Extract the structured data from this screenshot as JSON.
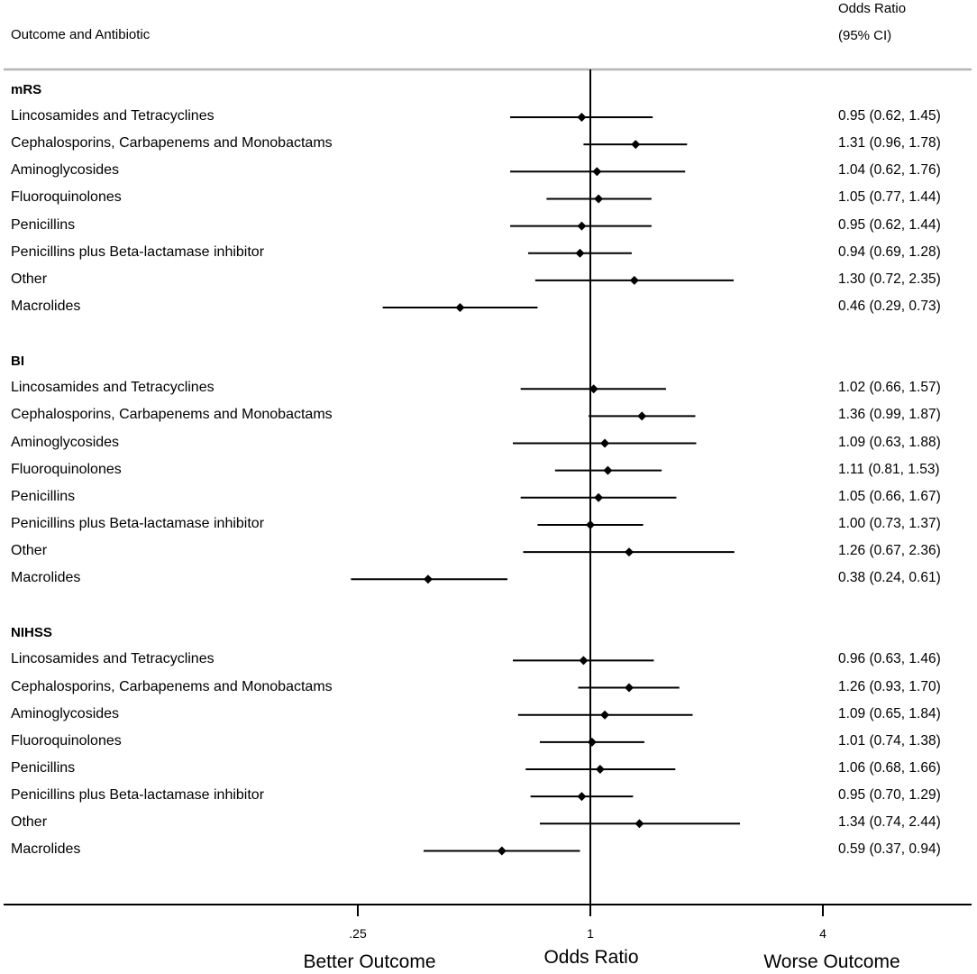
{
  "chart_data": {
    "type": "forest",
    "header": {
      "left": "Outcome and Antibiotic",
      "right_line1": "Odds Ratio",
      "right_line2": "(95% CI)"
    },
    "x_scale": "log2",
    "x_ticks": [
      {
        "value": 0.25,
        "label": ".25"
      },
      {
        "value": 1,
        "label": "1"
      },
      {
        "value": 4,
        "label": "4"
      }
    ],
    "xlabel": "Odds Ratio",
    "left_annotation": "Better Outcome",
    "right_annotation": "Worse Outcome",
    "reference_value": 1,
    "groups": [
      {
        "name": "mRS",
        "rows": [
          {
            "label": "Lincosamides and Tetracyclines",
            "or": 0.95,
            "lo": 0.62,
            "hi": 1.45,
            "text": "0.95 (0.62, 1.45)"
          },
          {
            "label": "Cephalosporins, Carbapenems and Monobactams",
            "or": 1.31,
            "lo": 0.96,
            "hi": 1.78,
            "text": "1.31 (0.96, 1.78)"
          },
          {
            "label": "Aminoglycosides",
            "or": 1.04,
            "lo": 0.62,
            "hi": 1.76,
            "text": "1.04 (0.62, 1.76)"
          },
          {
            "label": "Fluoroquinolones",
            "or": 1.05,
            "lo": 0.77,
            "hi": 1.44,
            "text": "1.05 (0.77, 1.44)"
          },
          {
            "label": "Penicillins",
            "or": 0.95,
            "lo": 0.62,
            "hi": 1.44,
            "text": "0.95 (0.62, 1.44)"
          },
          {
            "label": "Penicillins plus Beta-lactamase inhibitor",
            "or": 0.94,
            "lo": 0.69,
            "hi": 1.28,
            "text": "0.94 (0.69, 1.28)"
          },
          {
            "label": "Other",
            "or": 1.3,
            "lo": 0.72,
            "hi": 2.35,
            "text": "1.30 (0.72, 2.35)"
          },
          {
            "label": "Macrolides",
            "or": 0.46,
            "lo": 0.29,
            "hi": 0.73,
            "text": "0.46 (0.29, 0.73)"
          }
        ]
      },
      {
        "name": "BI",
        "rows": [
          {
            "label": "Lincosamides and Tetracyclines",
            "or": 1.02,
            "lo": 0.66,
            "hi": 1.57,
            "text": "1.02 (0.66, 1.57)"
          },
          {
            "label": "Cephalosporins, Carbapenems and Monobactams",
            "or": 1.36,
            "lo": 0.99,
            "hi": 1.87,
            "text": "1.36 (0.99, 1.87)"
          },
          {
            "label": "Aminoglycosides",
            "or": 1.09,
            "lo": 0.63,
            "hi": 1.88,
            "text": "1.09 (0.63, 1.88)"
          },
          {
            "label": "Fluoroquinolones",
            "or": 1.11,
            "lo": 0.81,
            "hi": 1.53,
            "text": "1.11 (0.81, 1.53)"
          },
          {
            "label": "Penicillins",
            "or": 1.05,
            "lo": 0.66,
            "hi": 1.67,
            "text": "1.05 (0.66, 1.67)"
          },
          {
            "label": "Penicillins plus Beta-lactamase inhibitor",
            "or": 1.0,
            "lo": 0.73,
            "hi": 1.37,
            "text": "1.00 (0.73, 1.37)"
          },
          {
            "label": "Other",
            "or": 1.26,
            "lo": 0.67,
            "hi": 2.36,
            "text": "1.26 (0.67, 2.36)"
          },
          {
            "label": "Macrolides",
            "or": 0.38,
            "lo": 0.24,
            "hi": 0.61,
            "text": "0.38 (0.24, 0.61)"
          }
        ]
      },
      {
        "name": "NIHSS",
        "rows": [
          {
            "label": "Lincosamides and Tetracyclines",
            "or": 0.96,
            "lo": 0.63,
            "hi": 1.46,
            "text": "0.96 (0.63, 1.46)"
          },
          {
            "label": "Cephalosporins, Carbapenems and Monobactams",
            "or": 1.26,
            "lo": 0.93,
            "hi": 1.7,
            "text": "1.26 (0.93, 1.70)"
          },
          {
            "label": "Aminoglycosides",
            "or": 1.09,
            "lo": 0.65,
            "hi": 1.84,
            "text": "1.09 (0.65, 1.84)"
          },
          {
            "label": "Fluoroquinolones",
            "or": 1.01,
            "lo": 0.74,
            "hi": 1.38,
            "text": "1.01 (0.74, 1.38)"
          },
          {
            "label": "Penicillins",
            "or": 1.06,
            "lo": 0.68,
            "hi": 1.66,
            "text": "1.06 (0.68, 1.66)"
          },
          {
            "label": "Penicillins plus Beta-lactamase inhibitor",
            "or": 0.95,
            "lo": 0.7,
            "hi": 1.29,
            "text": "0.95 (0.70, 1.29)"
          },
          {
            "label": "Other",
            "or": 1.34,
            "lo": 0.74,
            "hi": 2.44,
            "text": "1.34 (0.74, 2.44)"
          },
          {
            "label": "Macrolides",
            "or": 0.59,
            "lo": 0.37,
            "hi": 0.94,
            "text": "0.59 (0.37, 0.94)"
          }
        ]
      }
    ]
  }
}
